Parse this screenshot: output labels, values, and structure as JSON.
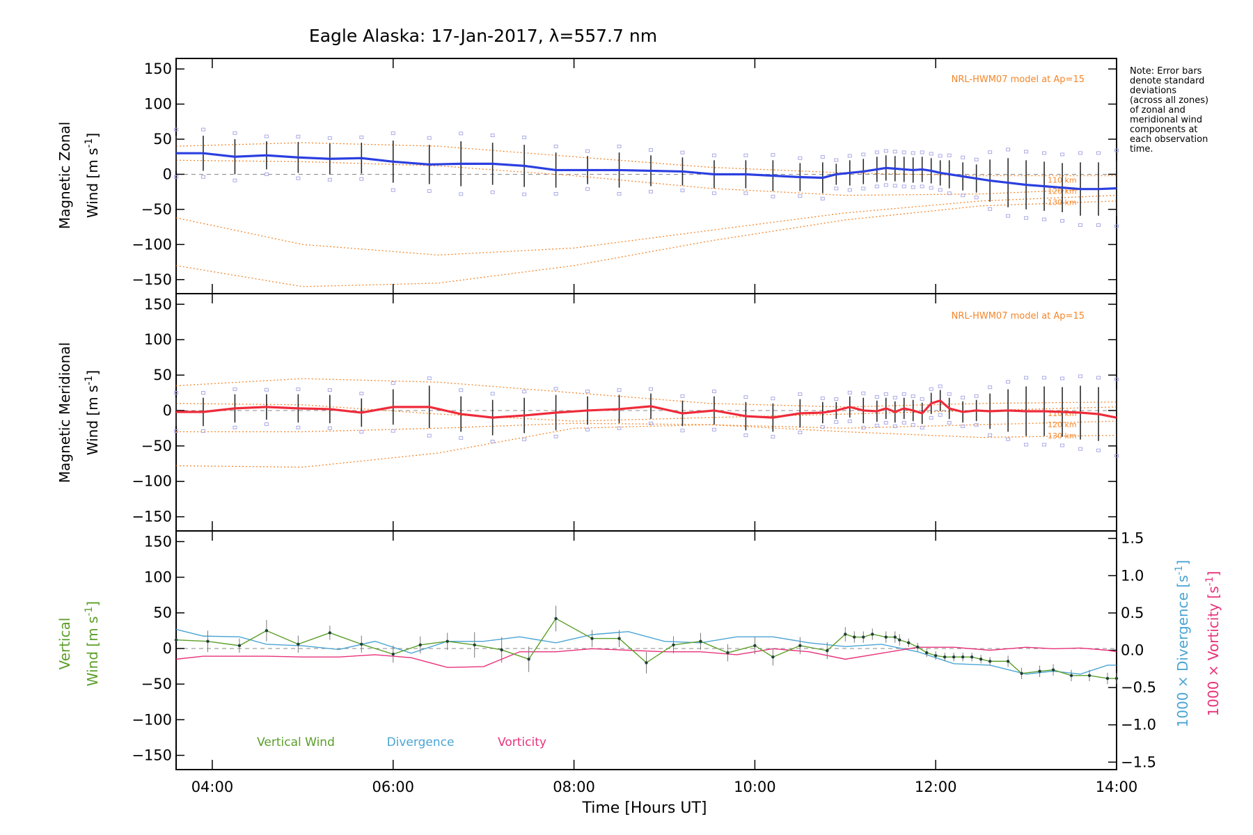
{
  "chart_data": [
    {
      "type": "line",
      "panel": "zonal",
      "title": "Eagle Alaska: 17-Jan-2017, λ=557.7 nm",
      "ylabel_line1": "Magnetic Zonal",
      "ylabel_line2": "Wind [m s",
      "ylabel_sup": "-1",
      "ylabel_end": "]",
      "ylim": [
        -170,
        165
      ],
      "xlim": [
        3.6,
        14.0
      ],
      "yticks": [
        -150,
        -100,
        -50,
        0,
        50,
        100,
        150
      ],
      "model_label": "NRL-HWM07 model at Ap=15",
      "height_labels": [
        "110 km",
        "120 km",
        "130 km"
      ],
      "zero_line": true,
      "series": [
        {
          "color": "#2b3fe0",
          "x": [
            3.6,
            3.9,
            4.25,
            4.6,
            4.95,
            5.3,
            5.65,
            6.0,
            6.4,
            6.75,
            7.1,
            7.45,
            7.8,
            8.15,
            8.5,
            8.85,
            9.2,
            9.55,
            9.9,
            10.2,
            10.5,
            10.75,
            10.9,
            11.05,
            11.2,
            11.35,
            11.45,
            11.55,
            11.65,
            11.75,
            11.85,
            11.95,
            12.05,
            12.15,
            12.3,
            12.45,
            12.6,
            12.8,
            13.0,
            13.2,
            13.4,
            13.6,
            13.8,
            14.0
          ],
          "values": [
            30,
            30,
            25,
            27,
            24,
            22,
            23,
            18,
            14,
            15,
            15,
            12,
            6,
            6,
            6,
            5,
            4,
            0,
            0,
            -2,
            -4,
            -5,
            0,
            2,
            4,
            7,
            9,
            8,
            7,
            6,
            7,
            5,
            2,
            0,
            -3,
            -6,
            -9,
            -12,
            -15,
            -17,
            -19,
            -21,
            -21,
            -20
          ],
          "errors": [
            25,
            25,
            25,
            20,
            22,
            22,
            22,
            30,
            28,
            32,
            30,
            30,
            25,
            20,
            25,
            22,
            20,
            20,
            20,
            22,
            20,
            22,
            15,
            18,
            18,
            18,
            18,
            18,
            18,
            18,
            18,
            18,
            18,
            20,
            20,
            20,
            30,
            35,
            35,
            35,
            35,
            38,
            38,
            40
          ]
        }
      ],
      "model_curves": [
        {
          "x": [
            3.6,
            5.0,
            6.5,
            8.0,
            9.5,
            11.0,
            12.5,
            14.0
          ],
          "values": [
            40,
            45,
            40,
            25,
            10,
            2,
            -2,
            -2
          ]
        },
        {
          "x": [
            3.6,
            5.0,
            6.5,
            8.0,
            9.5,
            11.0,
            12.5,
            14.0
          ],
          "values": [
            20,
            18,
            12,
            -2,
            -20,
            -30,
            -28,
            -20
          ]
        },
        {
          "x": [
            3.6,
            5.0,
            6.5,
            8.0,
            9.5,
            11.0,
            12.5,
            14.0
          ],
          "values": [
            -62,
            -100,
            -115,
            -105,
            -80,
            -55,
            -38,
            -30
          ]
        },
        {
          "x": [
            3.6,
            5.0,
            6.5,
            8.0,
            9.5,
            11.0,
            12.5,
            14.0
          ],
          "values": [
            -130,
            -160,
            -155,
            -130,
            -95,
            -65,
            -45,
            -38
          ]
        }
      ]
    },
    {
      "type": "line",
      "panel": "meridional",
      "ylabel_line1": "Magnetic Meridional",
      "ylabel_line2": "Wind [m s",
      "ylabel_sup": "-1",
      "ylabel_end": "]",
      "ylim": [
        -170,
        165
      ],
      "xlim": [
        3.6,
        14.0
      ],
      "yticks": [
        -150,
        -100,
        -50,
        0,
        50,
        100,
        150
      ],
      "model_label": "NRL-HWM07 model at Ap=15",
      "height_labels": [
        "110 km",
        "120 km",
        "130 km"
      ],
      "zero_line": true,
      "series": [
        {
          "color": "#ee2b3a",
          "x": [
            3.6,
            3.9,
            4.25,
            4.6,
            4.95,
            5.3,
            5.65,
            6.0,
            6.4,
            6.75,
            7.1,
            7.45,
            7.8,
            8.15,
            8.5,
            8.85,
            9.2,
            9.55,
            9.9,
            10.2,
            10.5,
            10.75,
            10.9,
            11.05,
            11.2,
            11.35,
            11.45,
            11.55,
            11.65,
            11.75,
            11.85,
            11.95,
            12.05,
            12.15,
            12.3,
            12.45,
            12.6,
            12.8,
            13.0,
            13.2,
            13.4,
            13.6,
            13.8,
            14.0
          ],
          "values": [
            -2,
            -2,
            3,
            5,
            3,
            2,
            -3,
            5,
            5,
            -5,
            -10,
            -7,
            -3,
            0,
            2,
            6,
            -4,
            0,
            -8,
            -10,
            -4,
            -3,
            0,
            5,
            0,
            -1,
            3,
            -2,
            3,
            0,
            -4,
            10,
            14,
            3,
            -2,
            0,
            -1,
            0,
            -1,
            -1,
            -2,
            -3,
            -5,
            -10
          ],
          "errors": [
            20,
            20,
            20,
            18,
            20,
            20,
            20,
            25,
            30,
            25,
            25,
            25,
            25,
            20,
            20,
            18,
            18,
            20,
            20,
            20,
            20,
            15,
            12,
            15,
            18,
            15,
            15,
            15,
            15,
            15,
            15,
            15,
            15,
            15,
            15,
            15,
            25,
            30,
            35,
            35,
            35,
            38,
            38,
            40
          ]
        }
      ],
      "model_curves": [
        {
          "x": [
            3.6,
            5.0,
            6.5,
            8.0,
            9.5,
            11.0,
            12.5,
            14.0
          ],
          "values": [
            35,
            45,
            40,
            25,
            10,
            5,
            10,
            12
          ]
        },
        {
          "x": [
            3.6,
            5.0,
            6.5,
            8.0,
            9.5,
            11.0,
            12.5,
            14.0
          ],
          "values": [
            10,
            8,
            -5,
            -15,
            -10,
            -5,
            0,
            5
          ]
        },
        {
          "x": [
            3.6,
            5.0,
            6.5,
            8.0,
            9.5,
            11.0,
            12.5,
            14.0
          ],
          "values": [
            -30,
            -30,
            -25,
            -18,
            -20,
            -25,
            -20,
            -15
          ]
        },
        {
          "x": [
            3.6,
            5.0,
            6.5,
            8.0,
            9.5,
            11.0,
            12.5,
            14.0
          ],
          "values": [
            -78,
            -80,
            -60,
            -25,
            -20,
            -30,
            -38,
            -35
          ]
        }
      ]
    },
    {
      "type": "line",
      "panel": "vertical",
      "ylabel_left_1": "Vertical",
      "ylabel_left_2": "Wind [m s",
      "ylabel_left_sup": "-1",
      "ylabel_left_end": "]",
      "ylabel_right_1": "1000 × Divergence [s",
      "ylabel_right_1_sup": "-1",
      "ylabel_right_1_end": "]",
      "ylabel_right_2": "1000 × Vorticity [s",
      "ylabel_right_2_sup": "-1",
      "ylabel_right_2_end": "]",
      "ylim": [
        -170,
        165
      ],
      "ylim_right": [
        -1.6,
        1.6
      ],
      "xlim": [
        3.6,
        14.0
      ],
      "yticks": [
        -150,
        -100,
        -50,
        0,
        50,
        100,
        150
      ],
      "yticks_right": [
        "−1.5",
        "−1.0",
        "−0.5",
        "0.0",
        "0.5",
        "1.0",
        "1.5"
      ],
      "yticks_right_values": [
        -1.5,
        -1.0,
        -0.5,
        0.0,
        0.5,
        1.0,
        1.5
      ],
      "xlabel": "Time [Hours UT]",
      "xticks": [
        "04:00",
        "06:00",
        "08:00",
        "10:00",
        "12:00",
        "14:00"
      ],
      "xticks_values": [
        4,
        6,
        8,
        10,
        12,
        14
      ],
      "zero_line": true,
      "legend": [
        "Vertical Wind",
        "Divergence",
        "Vorticity"
      ],
      "series": [
        {
          "name": "Vertical Wind",
          "color": "#5a9e28",
          "x": [
            3.6,
            3.95,
            4.3,
            4.6,
            4.95,
            5.3,
            5.65,
            6.0,
            6.3,
            6.6,
            6.9,
            7.2,
            7.5,
            7.8,
            8.2,
            8.5,
            8.8,
            9.1,
            9.4,
            9.7,
            10.0,
            10.2,
            10.5,
            10.8,
            11.0,
            11.1,
            11.2,
            11.3,
            11.45,
            11.55,
            11.6,
            11.7,
            11.8,
            11.9,
            12.0,
            12.1,
            12.2,
            12.3,
            12.4,
            12.5,
            12.6,
            12.8,
            12.95,
            13.15,
            13.3,
            13.5,
            13.7,
            13.9,
            14.0
          ],
          "values": [
            12,
            10,
            4,
            25,
            6,
            22,
            6,
            -8,
            5,
            10,
            5,
            -2,
            -15,
            42,
            14,
            14,
            -20,
            5,
            10,
            -6,
            4,
            -12,
            4,
            -3,
            20,
            16,
            16,
            20,
            16,
            16,
            12,
            8,
            2,
            -6,
            -10,
            -12,
            -12,
            -12,
            -12,
            -15,
            -18,
            -18,
            -35,
            -32,
            -30,
            -38,
            -38,
            -42,
            -42
          ],
          "errors": [
            0,
            15,
            10,
            15,
            12,
            10,
            12,
            12,
            12,
            12,
            18,
            18,
            18,
            18,
            12,
            12,
            15,
            12,
            12,
            12,
            12,
            12,
            12,
            12,
            10,
            8,
            8,
            8,
            8,
            8,
            8,
            6,
            6,
            6,
            6,
            6,
            6,
            6,
            6,
            6,
            6,
            8,
            8,
            8,
            8,
            8,
            8,
            8,
            8
          ]
        },
        {
          "name": "Divergence",
          "color": "#4aa4d4",
          "x": [
            3.6,
            3.9,
            4.3,
            4.6,
            5.0,
            5.4,
            5.8,
            6.2,
            6.6,
            7.0,
            7.4,
            7.8,
            8.2,
            8.6,
            9.0,
            9.4,
            9.8,
            10.2,
            10.6,
            11.0,
            11.4,
            11.8,
            12.2,
            12.6,
            13.0,
            13.3,
            13.6,
            13.9,
            14.0
          ],
          "values": [
            0.28,
            0.19,
            0.18,
            0.08,
            0.06,
            0.01,
            0.12,
            -0.04,
            0.12,
            0.12,
            0.18,
            0.1,
            0.21,
            0.25,
            0.12,
            0.1,
            0.18,
            0.18,
            0.1,
            0.05,
            0.08,
            -0.02,
            -0.18,
            -0.2,
            -0.32,
            -0.28,
            -0.32,
            -0.2,
            -0.2
          ]
        },
        {
          "name": "Vorticity",
          "color": "#e8317a",
          "x": [
            3.6,
            3.9,
            4.3,
            4.6,
            5.0,
            5.4,
            5.8,
            6.2,
            6.6,
            7.0,
            7.4,
            7.8,
            8.2,
            8.6,
            9.0,
            9.4,
            9.8,
            10.2,
            10.6,
            11.0,
            11.4,
            11.8,
            12.2,
            12.6,
            13.0,
            13.3,
            13.6,
            13.9,
            14.0
          ],
          "values": [
            -0.12,
            -0.08,
            -0.08,
            -0.08,
            -0.09,
            -0.09,
            -0.06,
            -0.1,
            -0.23,
            -0.22,
            -0.02,
            -0.02,
            0.02,
            0.0,
            -0.02,
            -0.02,
            -0.06,
            0.02,
            -0.02,
            -0.12,
            -0.04,
            0.04,
            0.04,
            0.0,
            0.04,
            0.02,
            0.03,
            0.0,
            -0.02
          ]
        }
      ]
    }
  ],
  "note": {
    "lines": [
      "Note: Error bars",
      "denote standard",
      "deviations",
      "(across all zones)",
      "of zonal and",
      "meridional wind",
      "components at",
      "each observation",
      "time."
    ]
  }
}
